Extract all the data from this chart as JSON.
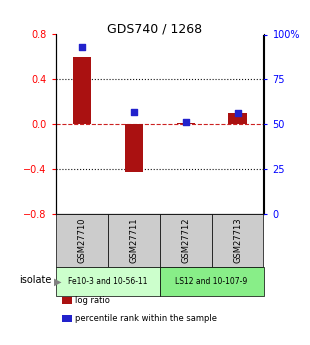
{
  "title": "GDS740 / 1268",
  "samples": [
    "GSM27710",
    "GSM27711",
    "GSM27712",
    "GSM27713"
  ],
  "log_ratios": [
    0.6,
    -0.43,
    0.01,
    0.1
  ],
  "percentile_ranks": [
    93,
    57,
    51,
    56
  ],
  "ylim_left": [
    -0.8,
    0.8
  ],
  "ylim_right": [
    0,
    100
  ],
  "yticks_left": [
    -0.8,
    -0.4,
    0.0,
    0.4,
    0.8
  ],
  "yticks_right": [
    0,
    25,
    50,
    75,
    100
  ],
  "ytick_labels_right": [
    "0",
    "25",
    "50",
    "75",
    "100%"
  ],
  "bar_color": "#aa1111",
  "dot_color": "#2222cc",
  "zero_line_color": "#cc2222",
  "grid_color": "#111111",
  "groups": [
    {
      "label": "Fe10-3 and 10-56-11",
      "indices": [
        0,
        1
      ],
      "color": "#ccffcc"
    },
    {
      "label": "LS12 and 10-107-9",
      "indices": [
        2,
        3
      ],
      "color": "#88ee88"
    }
  ],
  "isolate_label": "isolate",
  "legend_entries": [
    {
      "label": "log ratio",
      "color": "#aa1111"
    },
    {
      "label": "percentile rank within the sample",
      "color": "#2222cc"
    }
  ],
  "bg_color": "#ffffff",
  "sample_box_color": "#cccccc",
  "bar_width": 0.35
}
